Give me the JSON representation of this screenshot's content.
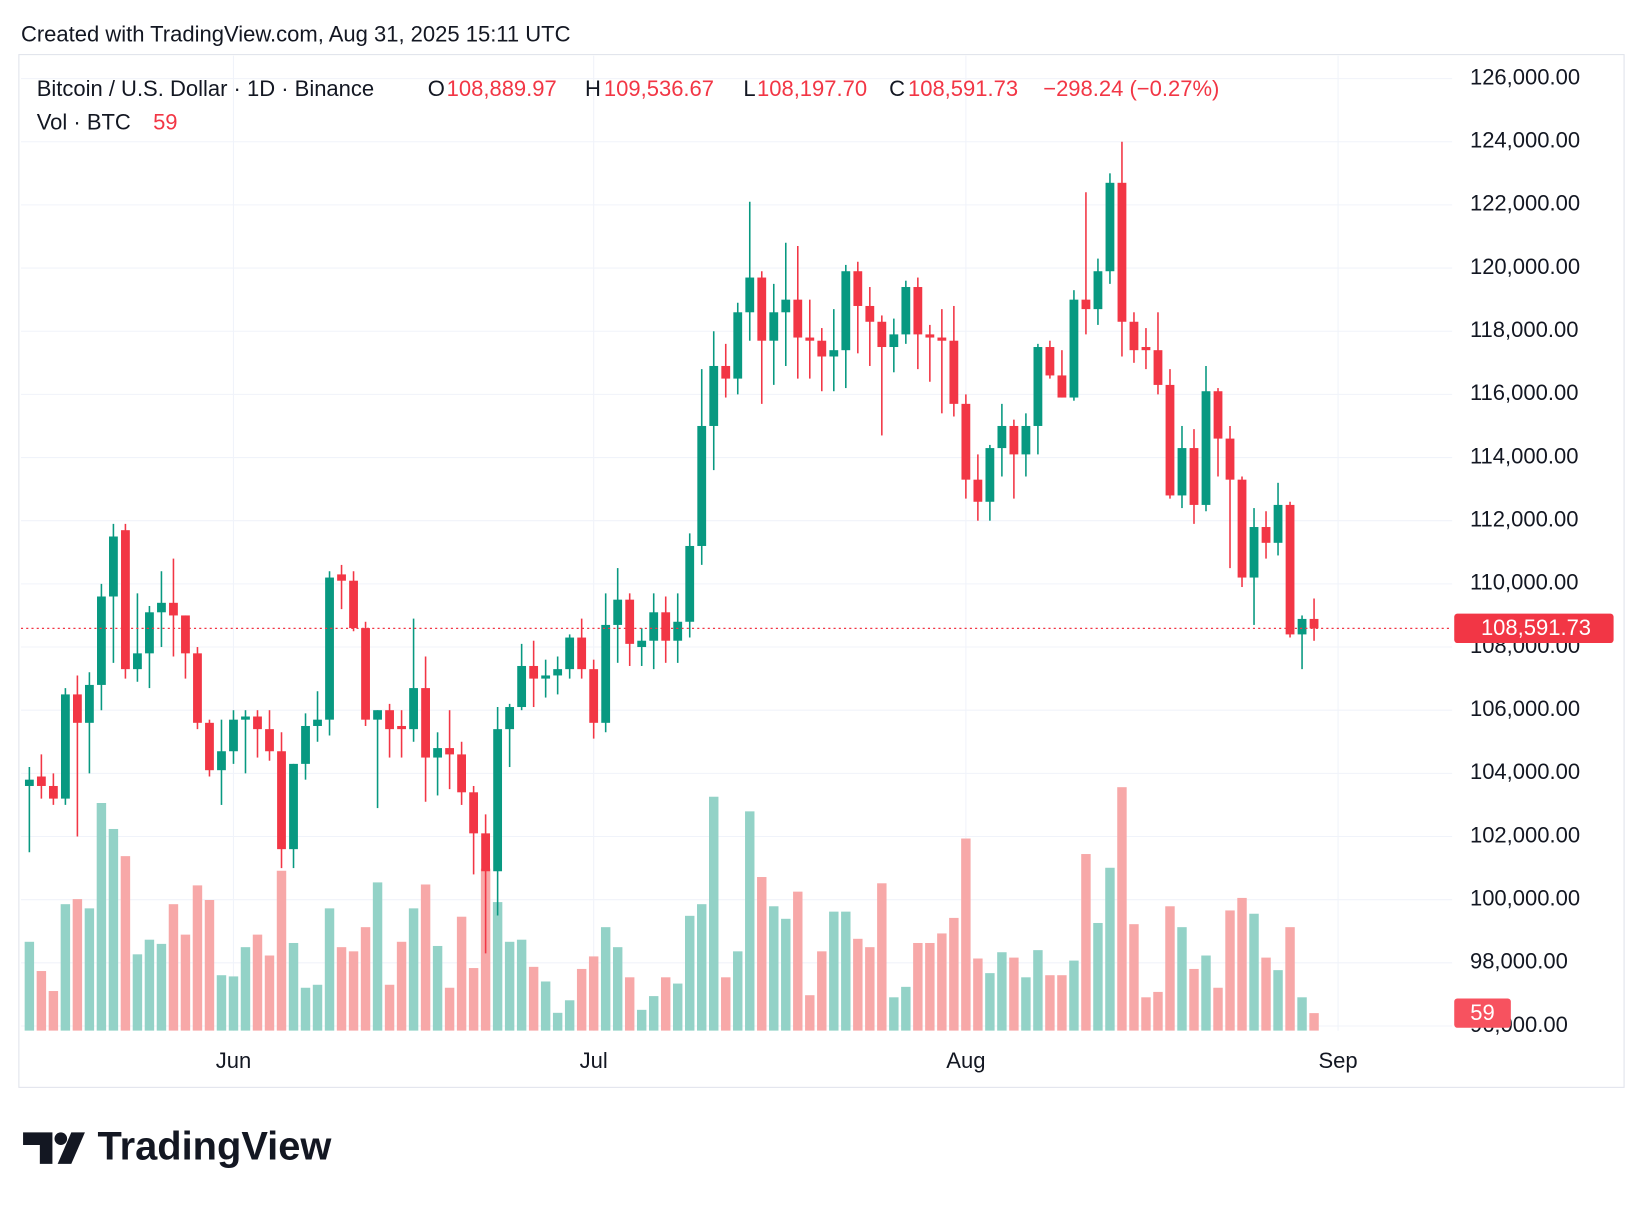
{
  "header": {
    "created": "Created with TradingView.com, Aug 31, 2025 15:11 UTC"
  },
  "legend": {
    "open_label": "O",
    "open": "108,889.97",
    "high_label": "H",
    "high": "109,536.67",
    "low_label": "L",
    "low": "108,197.70",
    "close_label": "C",
    "close": "108,591.73",
    "change": "−298.24 (−0.27%)"
  },
  "chart_data": {
    "type": "candlestick",
    "up_color": "#089981",
    "down_color": "#f23645",
    "series": [
      {
        "name": "Bitcoin / U.S. Dollar · 1D · Binance",
        "open": [
          103600,
          103900,
          103600,
          103200,
          106500,
          105600,
          106800,
          109600,
          111700,
          107300,
          107800,
          109100,
          109400,
          109000,
          107800,
          105600,
          104100,
          104700,
          105700,
          105800,
          105400,
          104700,
          101600,
          104300,
          105500,
          105700,
          110300,
          110100,
          108600,
          105700,
          106000,
          105500,
          105400,
          106700,
          104500,
          104800,
          104600,
          103400,
          102100,
          100900,
          105400,
          106100,
          107400,
          107000,
          107100,
          107300,
          108300,
          107300,
          105600,
          108700,
          109500,
          108000,
          108200,
          109100,
          108200,
          108800,
          111200,
          115000,
          116900,
          116500,
          118600,
          119700,
          117700,
          118600,
          119000,
          117800,
          117700,
          117200,
          117400,
          119900,
          118800,
          118300,
          117500,
          117900,
          119400,
          117900,
          117800,
          117700,
          115700,
          113300,
          112600,
          114300,
          115000,
          114100,
          115000,
          117500,
          116600,
          115900,
          119000,
          118700,
          119900,
          122700,
          118300,
          117500,
          117400,
          116300,
          112800,
          114300,
          112500,
          116100,
          114600,
          113300,
          110200,
          111800,
          111300,
          112500,
          108400,
          108889.97
        ],
        "high": [
          104200,
          104600,
          104000,
          106700,
          107100,
          107200,
          110000,
          111900,
          111900,
          109700,
          109300,
          110400,
          110800,
          109000,
          108000,
          105700,
          105700,
          106000,
          106000,
          106000,
          106000,
          105300,
          104300,
          105900,
          106600,
          110400,
          110600,
          110400,
          108800,
          106000,
          106200,
          106000,
          108900,
          107700,
          105300,
          106000,
          105000,
          103600,
          102700,
          106100,
          106200,
          108100,
          108200,
          107600,
          107700,
          108400,
          108900,
          107600,
          109700,
          110500,
          109700,
          108600,
          109700,
          109600,
          109700,
          111600,
          116800,
          118000,
          117600,
          118900,
          122100,
          119900,
          119500,
          120800,
          120700,
          119000,
          118100,
          118700,
          120100,
          120200,
          119400,
          118500,
          118400,
          119600,
          119700,
          118200,
          118700,
          118800,
          116000,
          114100,
          114400,
          115700,
          115200,
          115400,
          117600,
          117700,
          117400,
          119300,
          122400,
          120300,
          123000,
          124000,
          118600,
          118100,
          118600,
          116800,
          115000,
          114900,
          116900,
          116200,
          115000,
          113400,
          112400,
          112300,
          113200,
          112600,
          109000,
          109536.67
        ],
        "low": [
          101500,
          103200,
          103000,
          103000,
          102000,
          104000,
          106000,
          107500,
          107000,
          106900,
          106700,
          108000,
          107700,
          107000,
          105400,
          103900,
          103000,
          104300,
          104000,
          104500,
          104400,
          101000,
          101000,
          103800,
          105000,
          105200,
          109200,
          108500,
          105500,
          102900,
          104500,
          104500,
          105000,
          103100,
          103300,
          103500,
          103000,
          100800,
          98300,
          99500,
          104200,
          106000,
          106100,
          106400,
          106500,
          107000,
          107000,
          105100,
          105300,
          107500,
          107400,
          107400,
          107300,
          107500,
          107500,
          108300,
          110600,
          113600,
          115900,
          116000,
          117700,
          115700,
          116300,
          116900,
          116500,
          116500,
          116100,
          116100,
          116200,
          117300,
          116900,
          114700,
          116700,
          117600,
          116800,
          116400,
          115400,
          115300,
          112700,
          112000,
          112000,
          113400,
          112700,
          113400,
          114100,
          116500,
          115900,
          115800,
          117900,
          118200,
          119500,
          117200,
          117000,
          116800,
          116000,
          112700,
          112400,
          111900,
          112300,
          113400,
          110500,
          109900,
          108700,
          110800,
          110900,
          108300,
          107300,
          108197.7
        ],
        "close": [
          103800,
          103600,
          103200,
          106500,
          105600,
          106800,
          109600,
          111500,
          107300,
          107800,
          109100,
          109400,
          109000,
          107800,
          105600,
          104100,
          104700,
          105700,
          105800,
          105400,
          104700,
          101600,
          104300,
          105500,
          105700,
          110200,
          110100,
          108600,
          105700,
          106000,
          105400,
          105400,
          106700,
          104500,
          104800,
          104600,
          103400,
          102100,
          100900,
          105400,
          106100,
          107400,
          107000,
          107100,
          107300,
          108300,
          107300,
          105600,
          108700,
          109500,
          108100,
          108200,
          109100,
          108200,
          108800,
          111200,
          115000,
          116900,
          116500,
          118600,
          119700,
          117700,
          118600,
          119000,
          117800,
          117700,
          117200,
          117400,
          119900,
          118800,
          118300,
          117500,
          117900,
          119400,
          117900,
          117800,
          117700,
          115700,
          113300,
          112600,
          114300,
          115000,
          114100,
          115000,
          117500,
          116600,
          115900,
          119000,
          118700,
          119900,
          122700,
          118300,
          117400,
          117400,
          116300,
          112800,
          114300,
          112500,
          116100,
          114600,
          113300,
          110200,
          111800,
          111300,
          112500,
          108400,
          108889.97,
          108591.73
        ],
        "value_labels": {
          "last": "108,591.73"
        }
      },
      {
        "name": "Vol · BTC",
        "axis": "y2",
        "values": [
          298,
          200,
          133,
          424,
          441,
          410,
          763,
          676,
          585,
          256,
          305,
          291,
          424,
          322,
          487,
          438,
          186,
          182,
          280,
          322,
          252,
          536,
          294,
          144,
          154,
          410,
          280,
          266,
          347,
          497,
          154,
          298,
          410,
          490,
          284,
          144,
          382,
          210,
          543,
          431,
          298,
          305,
          214,
          165,
          60,
          102,
          207,
          249,
          347,
          280,
          179,
          70,
          116,
          179,
          158,
          385,
          424,
          784,
          179,
          266,
          735,
          515,
          417,
          375,
          466,
          119,
          266,
          399,
          399,
          308,
          280,
          494,
          112,
          147,
          294,
          294,
          326,
          378,
          644,
          242,
          193,
          263,
          245,
          179,
          270,
          186,
          186,
          235,
          592,
          361,
          546,
          816,
          357,
          112,
          130,
          417,
          347,
          207,
          252,
          144,
          403,
          445,
          392,
          245,
          203,
          347,
          112,
          59
        ],
        "up_color": "#93d2c7",
        "down_color": "#f7a8a8"
      }
    ],
    "xlim": [
      -0.7,
      118.5
    ],
    "xticks": [
      {
        "value": 17,
        "label": "Jun"
      },
      {
        "value": 47,
        "label": "Jul"
      },
      {
        "value": 78,
        "label": "Aug"
      },
      {
        "value": 109,
        "label": "Sep"
      }
    ],
    "ylim": [
      95850,
      126660
    ],
    "yticks": [
      {
        "value": 96000,
        "label": "96,000.00"
      },
      {
        "value": 98000,
        "label": "98,000.00"
      },
      {
        "value": 100000,
        "label": "100,000.00"
      },
      {
        "value": 102000,
        "label": "102,000.00"
      },
      {
        "value": 104000,
        "label": "104,000.00"
      },
      {
        "value": 106000,
        "label": "106,000.00"
      },
      {
        "value": 108000,
        "label": "108,000.00"
      },
      {
        "value": 110000,
        "label": "110,000.00"
      },
      {
        "value": 112000,
        "label": "112,000.00"
      },
      {
        "value": 114000,
        "label": "114,000.00"
      },
      {
        "value": 116000,
        "label": "116,000.00"
      },
      {
        "value": 118000,
        "label": "118,000.00"
      },
      {
        "value": 120000,
        "label": "120,000.00"
      },
      {
        "value": 122000,
        "label": "122,000.00"
      },
      {
        "value": 124000,
        "label": "124,000.00"
      },
      {
        "value": 126000,
        "label": "126,000.00"
      }
    ],
    "y2lim": [
      0,
      3260
    ],
    "grid": true
  },
  "footer": {
    "logo": "TradingView"
  }
}
